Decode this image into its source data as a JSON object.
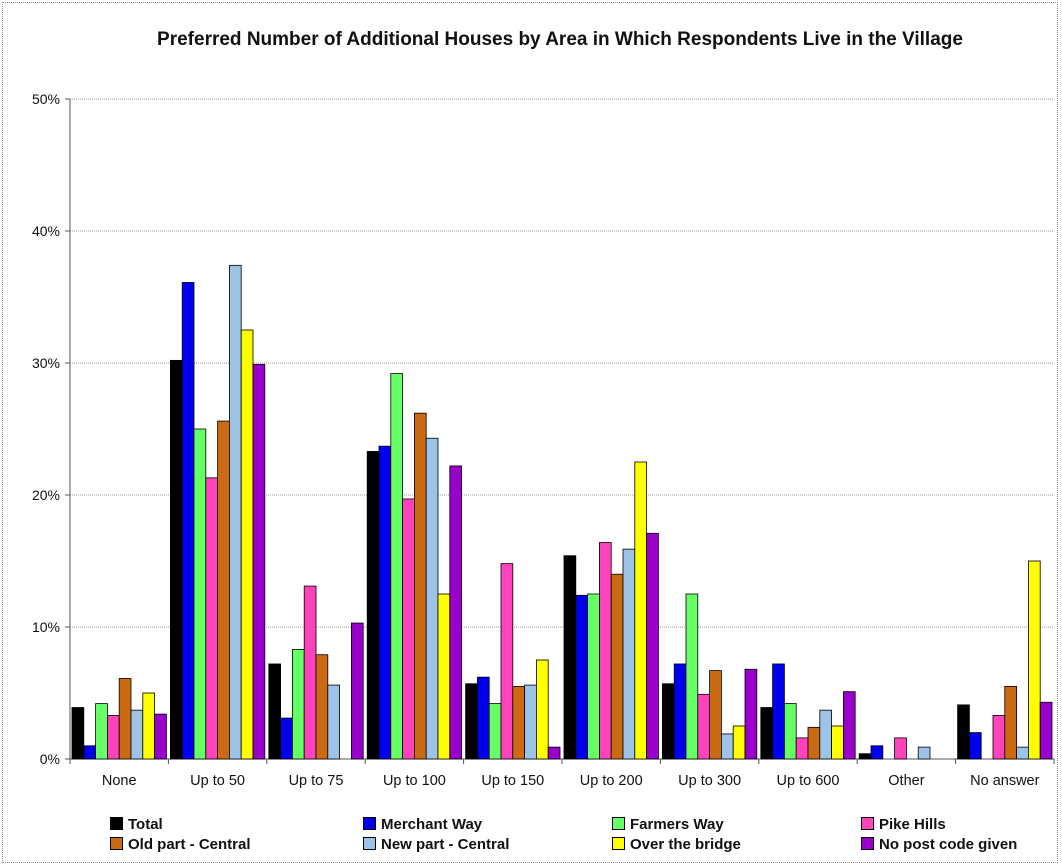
{
  "chart_data": {
    "type": "bar",
    "title": "Preferred Number of Additional Houses by Area in Which Respondents Live in the Village",
    "xlabel": "",
    "ylabel": "",
    "ylim": [
      0,
      50
    ],
    "yticks": [
      "0%",
      "10%",
      "20%",
      "30%",
      "40%",
      "50%"
    ],
    "grid": true,
    "legend_position": "bottom",
    "categories": [
      "None",
      "Up to 50",
      "Up to 75",
      "Up to 100",
      "Up to 150",
      "Up to 200",
      "Up to 300",
      "Up to 600",
      "Other",
      "No answer"
    ],
    "series": [
      {
        "name": "Total",
        "color": "#000000",
        "values": [
          3.9,
          30.2,
          7.2,
          23.3,
          5.7,
          15.4,
          5.7,
          3.9,
          0.4,
          4.1
        ]
      },
      {
        "name": "Merchant Way",
        "color": "#0000ee",
        "values": [
          1.0,
          36.1,
          3.1,
          23.7,
          6.2,
          12.4,
          7.2,
          7.2,
          1.0,
          2.0
        ]
      },
      {
        "name": "Farmers Way",
        "color": "#66ff66",
        "values": [
          4.2,
          25.0,
          8.3,
          29.2,
          4.2,
          12.5,
          12.5,
          4.2,
          0,
          0
        ]
      },
      {
        "name": "Pike Hills",
        "color": "#ff44bb",
        "values": [
          3.3,
          21.3,
          13.1,
          19.7,
          14.8,
          16.4,
          4.9,
          1.6,
          1.6,
          3.3
        ]
      },
      {
        "name": "Old part - Central",
        "color": "#cc6a14",
        "values": [
          6.1,
          25.6,
          7.9,
          26.2,
          5.5,
          14.0,
          6.7,
          2.4,
          0,
          5.5
        ]
      },
      {
        "name": "New part - Central",
        "color": "#9dc3e6",
        "values": [
          3.7,
          37.4,
          5.6,
          24.3,
          5.6,
          15.9,
          1.9,
          3.7,
          0.9,
          0.9
        ]
      },
      {
        "name": "Over the bridge",
        "color": "#ffff00",
        "values": [
          5.0,
          32.5,
          0,
          12.5,
          7.5,
          22.5,
          2.5,
          2.5,
          0,
          15.0
        ]
      },
      {
        "name": "No post code given",
        "color": "#9900cc",
        "values": [
          3.4,
          29.9,
          10.3,
          22.2,
          0.9,
          17.1,
          6.8,
          5.1,
          0,
          4.3
        ]
      }
    ]
  }
}
